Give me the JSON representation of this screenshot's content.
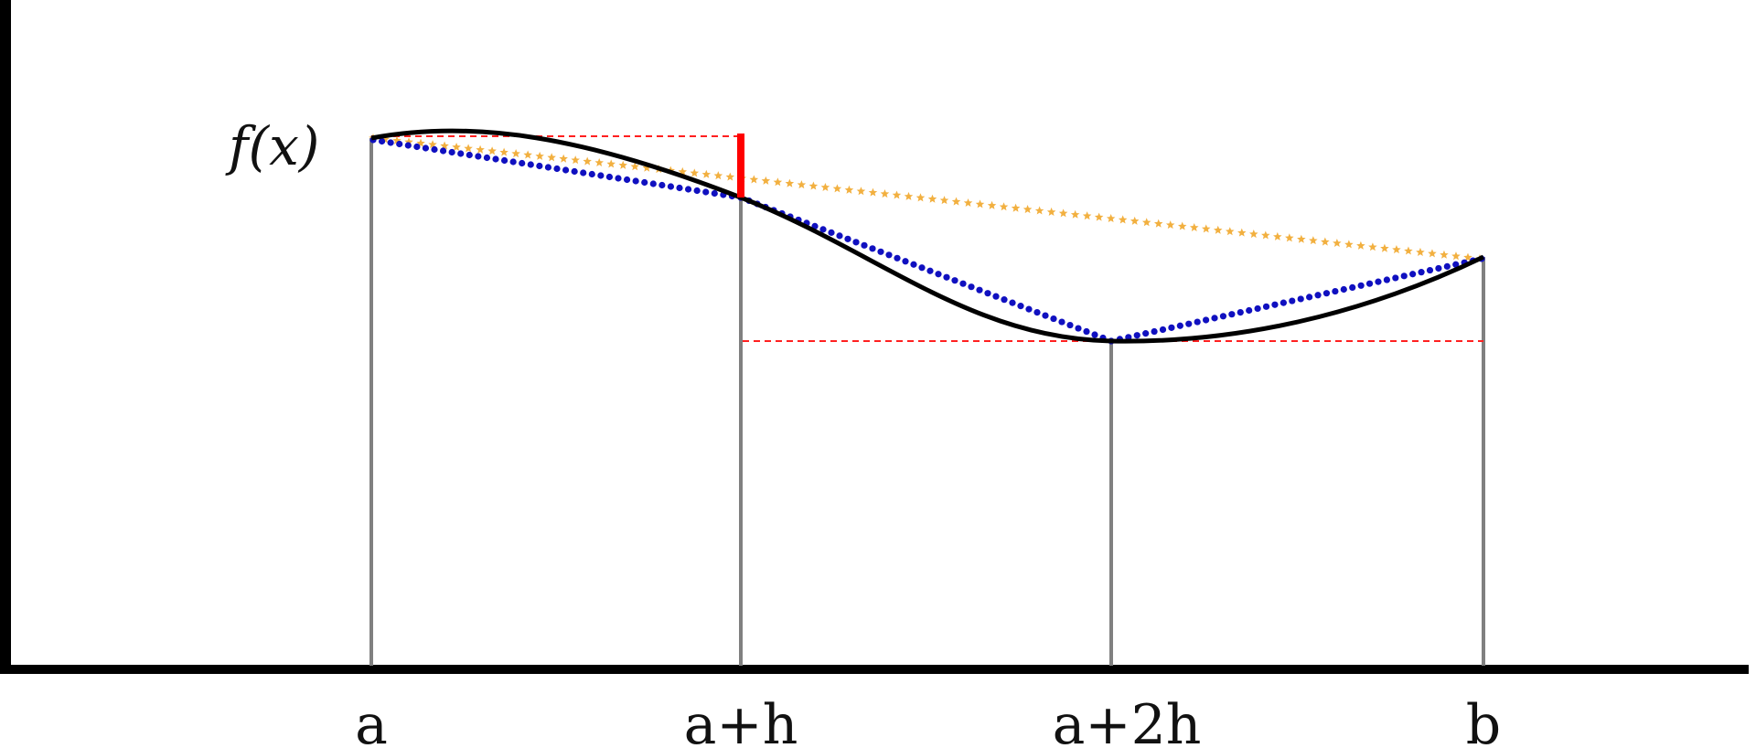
{
  "function_label": "f(x)",
  "tick_labels": [
    "a",
    "a+h",
    "a+2h",
    "b"
  ],
  "colors": {
    "axis": "#000000",
    "grid_lines": "#808080",
    "curve": "#000000",
    "dotted_secant": "#1010c0",
    "star_secant": "#f2b040",
    "dashed_guides": "#ff2020",
    "error_bar": "#ff0000",
    "background": "#ffffff"
  },
  "markers": {
    "dotted_secant": "dot",
    "star_secant": "star"
  }
}
